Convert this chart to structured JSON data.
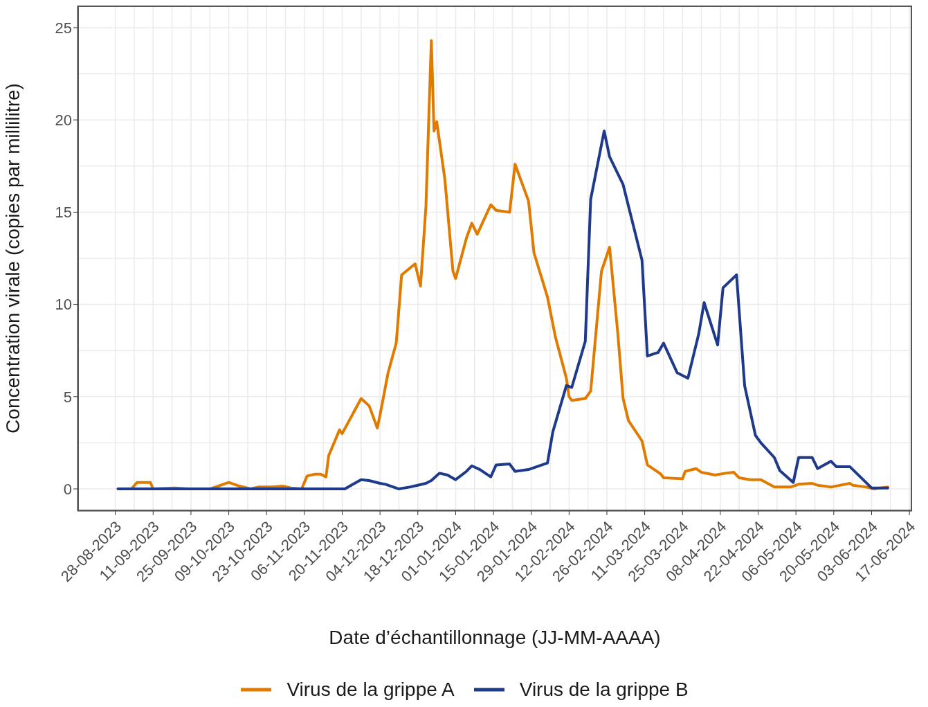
{
  "chart_data": {
    "type": "line",
    "xlabel": "Date d’échantillonnage (JJ-MM-AAAA)",
    "ylabel": "Concentration virale (copies par millilitre)",
    "xlim": [
      "2023-08-14",
      "2024-06-18"
    ],
    "ylim": [
      -1.2,
      26.2
    ],
    "yticks": [
      0,
      5,
      10,
      15,
      20,
      25
    ],
    "xticks": [
      {
        "value": "2023-08-28",
        "label": "28-08-2023"
      },
      {
        "value": "2023-09-11",
        "label": "11-09-2023"
      },
      {
        "value": "2023-09-25",
        "label": "25-09-2023"
      },
      {
        "value": "2023-10-09",
        "label": "09-10-2023"
      },
      {
        "value": "2023-10-23",
        "label": "23-10-2023"
      },
      {
        "value": "2023-11-06",
        "label": "06-11-2023"
      },
      {
        "value": "2023-11-20",
        "label": "20-11-2023"
      },
      {
        "value": "2023-12-04",
        "label": "04-12-2023"
      },
      {
        "value": "2023-12-18",
        "label": "18-12-2023"
      },
      {
        "value": "2024-01-01",
        "label": "01-01-2024"
      },
      {
        "value": "2024-01-15",
        "label": "15-01-2024"
      },
      {
        "value": "2024-01-29",
        "label": "29-01-2024"
      },
      {
        "value": "2024-02-12",
        "label": "12-02-2024"
      },
      {
        "value": "2024-02-26",
        "label": "26-02-2024"
      },
      {
        "value": "2024-03-11",
        "label": "11-03-2024"
      },
      {
        "value": "2024-03-25",
        "label": "25-03-2024"
      },
      {
        "value": "2024-04-08",
        "label": "08-04-2024"
      },
      {
        "value": "2024-04-22",
        "label": "22-04-2024"
      },
      {
        "value": "2024-05-06",
        "label": "06-05-2024"
      },
      {
        "value": "2024-05-20",
        "label": "20-05-2024"
      },
      {
        "value": "2024-06-03",
        "label": "03-06-2024"
      },
      {
        "value": "2024-06-17",
        "label": "17-06-2024"
      }
    ],
    "grid": true,
    "legend": "bottom",
    "marker": "none",
    "line_style": "solid",
    "series": [
      {
        "name": "Virus de la grippe A",
        "color": "#e07b00",
        "x": [
          "2023-08-29",
          "2023-09-03",
          "2023-09-05",
          "2023-09-10",
          "2023-09-11",
          "2023-09-19",
          "2023-09-24",
          "2023-10-02",
          "2023-10-05",
          "2023-10-09",
          "2023-10-13",
          "2023-10-17",
          "2023-10-20",
          "2023-10-25",
          "2023-10-29",
          "2023-11-01",
          "2023-11-05",
          "2023-11-07",
          "2023-11-10",
          "2023-11-12",
          "2023-11-14",
          "2023-11-15",
          "2023-11-17",
          "2023-11-19",
          "2023-11-20",
          "2023-11-27",
          "2023-11-30",
          "2023-12-03",
          "2023-12-04",
          "2023-12-07",
          "2023-12-10",
          "2023-12-12",
          "2023-12-17",
          "2023-12-19",
          "2023-12-21",
          "2023-12-23",
          "2023-12-24",
          "2023-12-25",
          "2023-12-28",
          "2023-12-31",
          "2024-01-01",
          "2024-01-05",
          "2024-01-07",
          "2024-01-09",
          "2024-01-14",
          "2024-01-16",
          "2024-01-21",
          "2024-01-23",
          "2024-01-28",
          "2024-01-30",
          "2024-02-04",
          "2024-02-07",
          "2024-02-11",
          "2024-02-12",
          "2024-02-13",
          "2024-02-18",
          "2024-02-20",
          "2024-02-24",
          "2024-02-27",
          "2024-03-01",
          "2024-03-03",
          "2024-03-05",
          "2024-03-10",
          "2024-03-12",
          "2024-03-17",
          "2024-03-18",
          "2024-03-25",
          "2024-03-26",
          "2024-03-30",
          "2024-04-01",
          "2024-04-06",
          "2024-04-10",
          "2024-04-13",
          "2024-04-15",
          "2024-04-19",
          "2024-04-23",
          "2024-04-28",
          "2024-05-04",
          "2024-05-07",
          "2024-05-12",
          "2024-05-14",
          "2024-05-19",
          "2024-05-26",
          "2024-05-27",
          "2024-06-01",
          "2024-06-04",
          "2024-06-09"
        ],
        "values": [
          0,
          0,
          0.35,
          0.35,
          0,
          0.05,
          0,
          0,
          0.15,
          0.35,
          0.15,
          0,
          0.1,
          0.1,
          0.15,
          0.05,
          0,
          0.7,
          0.8,
          0.8,
          0.65,
          1.8,
          2.5,
          3.2,
          3.0,
          4.9,
          4.5,
          3.3,
          4.0,
          6.3,
          7.9,
          11.6,
          12.2,
          11.0,
          15.3,
          24.3,
          19.4,
          19.9,
          16.8,
          11.8,
          11.4,
          13.6,
          14.4,
          13.8,
          15.4,
          15.1,
          15.0,
          17.6,
          15.6,
          12.8,
          10.4,
          8.2,
          6.0,
          5.0,
          4.8,
          4.9,
          5.3,
          11.8,
          13.1,
          8.5,
          4.9,
          3.7,
          2.6,
          1.3,
          0.8,
          0.6,
          0.55,
          0.95,
          1.1,
          0.9,
          0.75,
          0.85,
          0.9,
          0.6,
          0.5,
          0.5,
          0.1,
          0.1,
          0.25,
          0.3,
          0.2,
          0.1,
          0.3,
          0.2,
          0.1,
          0,
          0.1
        ]
      },
      {
        "name": "Virus de la grippe B",
        "color": "#1f3a8a",
        "x": [
          "2023-08-29",
          "2023-11-21",
          "2023-11-27",
          "2023-11-30",
          "2023-12-04",
          "2023-12-06",
          "2023-12-11",
          "2023-12-15",
          "2023-12-18",
          "2023-12-21",
          "2023-12-23",
          "2023-12-26",
          "2023-12-29",
          "2024-01-01",
          "2024-01-05",
          "2024-01-07",
          "2024-01-10",
          "2024-01-14",
          "2024-01-16",
          "2024-01-21",
          "2024-01-23",
          "2024-01-28",
          "2024-01-30",
          "2024-02-04",
          "2024-02-06",
          "2024-02-11",
          "2024-02-13",
          "2024-02-18",
          "2024-02-20",
          "2024-02-25",
          "2024-02-27",
          "2024-03-03",
          "2024-03-10",
          "2024-03-12",
          "2024-03-16",
          "2024-03-18",
          "2024-03-23",
          "2024-03-27",
          "2024-03-31",
          "2024-04-02",
          "2024-04-07",
          "2024-04-09",
          "2024-04-14",
          "2024-04-17",
          "2024-04-21",
          "2024-04-23",
          "2024-04-28",
          "2024-04-30",
          "2024-05-05",
          "2024-05-07",
          "2024-05-12",
          "2024-05-14",
          "2024-05-19",
          "2024-05-21",
          "2024-05-26",
          "2024-06-03",
          "2024-06-09"
        ],
        "values": [
          0,
          0,
          0.5,
          0.45,
          0.3,
          0.25,
          0,
          0.1,
          0.2,
          0.3,
          0.45,
          0.85,
          0.75,
          0.5,
          0.95,
          1.25,
          1.05,
          0.65,
          1.3,
          1.35,
          0.95,
          1.05,
          1.15,
          1.4,
          3.1,
          5.6,
          5.5,
          8.0,
          15.7,
          19.4,
          18.0,
          16.5,
          12.4,
          7.2,
          7.4,
          7.9,
          6.3,
          6.0,
          8.4,
          10.1,
          7.8,
          10.9,
          11.6,
          5.6,
          2.9,
          2.5,
          1.7,
          1.0,
          0.35,
          1.7,
          1.7,
          1.1,
          1.5,
          1.2,
          1.2,
          0.05,
          0.05
        ]
      }
    ]
  }
}
